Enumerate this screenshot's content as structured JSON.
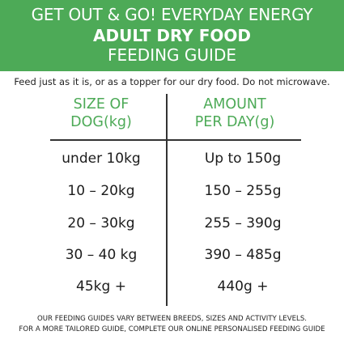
{
  "header": {
    "line1": "GET OUT & GO! EVERYDAY ENERGY",
    "line2": "ADULT DRY FOOD",
    "line3": "FEEDING GUIDE",
    "background": "#4daa57"
  },
  "intro": "Feed just as it is, or as a topper for our dry food. Do not microwave.",
  "table": {
    "header_color": "#4daa57",
    "columns": [
      {
        "line1": "SIZE OF",
        "line2": "DOG(kg)"
      },
      {
        "line1": "AMOUNT",
        "line2": "PER DAY(g)"
      }
    ],
    "rows": [
      {
        "size": "under 10kg",
        "amount": "Up to 150g"
      },
      {
        "size": "10 – 20kg",
        "amount": "150 – 255g"
      },
      {
        "size": "20 – 30kg",
        "amount": "255 – 390g"
      },
      {
        "size": "30 – 40 kg",
        "amount": "390 – 485g"
      },
      {
        "size": "45kg +",
        "amount": "440g +"
      }
    ]
  },
  "footer": {
    "line1": "OUR FEEDING GUIDES VARY BETWEEN BREEDS, SIZES AND ACTIVITY LEVELS.",
    "line2": "FOR A MORE TAILORED GUIDE, COMPLETE OUR ONLINE PERSONALISED FEEDING GUIDE"
  }
}
